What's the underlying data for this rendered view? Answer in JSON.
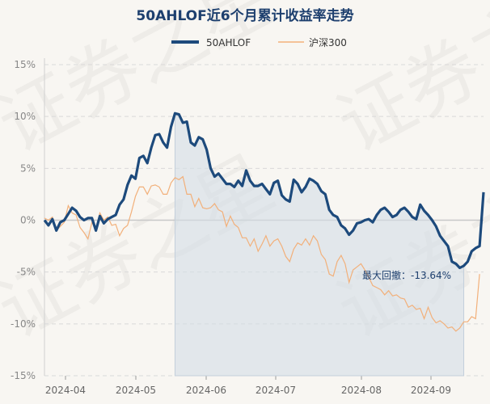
{
  "chart_data": {
    "type": "line",
    "title": "50AHLOF近6个月累计收益率走势",
    "ylim": [
      -15,
      15
    ],
    "y_ticks": [
      "15%",
      "10%",
      "5%",
      "0%",
      "-5%",
      "-10%",
      "-15%"
    ],
    "x_ticks": [
      "2024-04",
      "2024-05",
      "2024-06",
      "2024-07",
      "2024-08",
      "2024-09"
    ],
    "legend_position": "top-center",
    "grid": "horizontal-dashed",
    "colors": {
      "fund": "#1d4a7c",
      "index": "#f2b07a",
      "drawdown": "#d4dde6"
    },
    "series": [
      {
        "name": "50AHLOF",
        "values": [
          0,
          -0.5,
          0.1,
          -1,
          -0.2,
          0,
          0.6,
          1.2,
          0.9,
          0.3,
          0,
          0.2,
          0.2,
          -1,
          0.4,
          -0.3,
          0.1,
          0.3,
          0.5,
          1.5,
          2,
          3.4,
          4.3,
          4,
          6,
          6.2,
          5.5,
          7,
          8.2,
          8.3,
          7.5,
          7,
          9,
          10.3,
          10.2,
          9.4,
          9.5,
          7.5,
          7.2,
          8,
          7.8,
          6.8,
          5,
          4.2,
          4.5,
          4,
          3.5,
          3.5,
          3.2,
          3.8,
          3.3,
          4.8,
          3.8,
          3.3,
          3.3,
          3.5,
          3,
          2.5,
          3.6,
          3.8,
          2.4,
          2,
          1.8,
          3.9,
          3.5,
          2.7,
          3.2,
          4,
          3.8,
          3.5,
          2.8,
          2.5,
          1,
          0.5,
          0.3,
          -0.5,
          -0.8,
          -1.4,
          -1,
          -0.3,
          -0.2,
          0,
          0.1,
          -0.2,
          0.5,
          1,
          1.2,
          0.8,
          0.3,
          0.5,
          1,
          1.2,
          0.8,
          0.3,
          0.1,
          1.5,
          0.9,
          0.5,
          0,
          -0.6,
          -1.5,
          -2,
          -2.5,
          -4,
          -4.2,
          -4.6,
          -4.4,
          -4,
          -3,
          -2.7,
          -2.5,
          2.7
        ]
      },
      {
        "name": "沪深300",
        "values": [
          0.2,
          0,
          0.3,
          -1,
          -0.6,
          -0.2,
          1.4,
          0.7,
          0.5,
          -0.7,
          -1.2,
          -1.8,
          -0.2,
          -0.9,
          0.7,
          0,
          0.3,
          -0.5,
          -0.4,
          -1.5,
          -0.8,
          -0.5,
          0.8,
          2.3,
          3.2,
          3.2,
          2.5,
          3.3,
          3.4,
          3.2,
          2.5,
          2.5,
          3.6,
          4.1,
          3.9,
          4.2,
          2.5,
          2.5,
          1.3,
          2.1,
          1.2,
          1.1,
          1.2,
          1.6,
          1,
          0.8,
          -0.6,
          0.4,
          -0.4,
          -0.7,
          -1.7,
          -1.7,
          -2.5,
          -1.8,
          -3,
          -2.3,
          -1.5,
          -2.5,
          -2,
          -1.8,
          -2.5,
          -3.5,
          -4,
          -2.8,
          -2.2,
          -2.4,
          -1.8,
          -2.4,
          -1.5,
          -2,
          -3.3,
          -3.8,
          -5.2,
          -5.4,
          -4,
          -3.4,
          -4.2,
          -6,
          -4.8,
          -4.5,
          -4.2,
          -4.8,
          -5.5,
          -6.3,
          -6.5,
          -6.7,
          -7.2,
          -6.8,
          -7.3,
          -7.2,
          -7.5,
          -7.6,
          -8.4,
          -8.2,
          -8.6,
          -8.5,
          -9.5,
          -8.4,
          -9.4,
          -9.9,
          -9.7,
          -10,
          -10.4,
          -10.3,
          -10.7,
          -10.4,
          -9.8,
          -9.8,
          -9.3,
          -9.5,
          -5.2
        ]
      }
    ],
    "max_drawdown": {
      "label": "最大回撤：-13.64%",
      "start_index": 33,
      "end_index": 106
    }
  },
  "watermark": "证券之星"
}
